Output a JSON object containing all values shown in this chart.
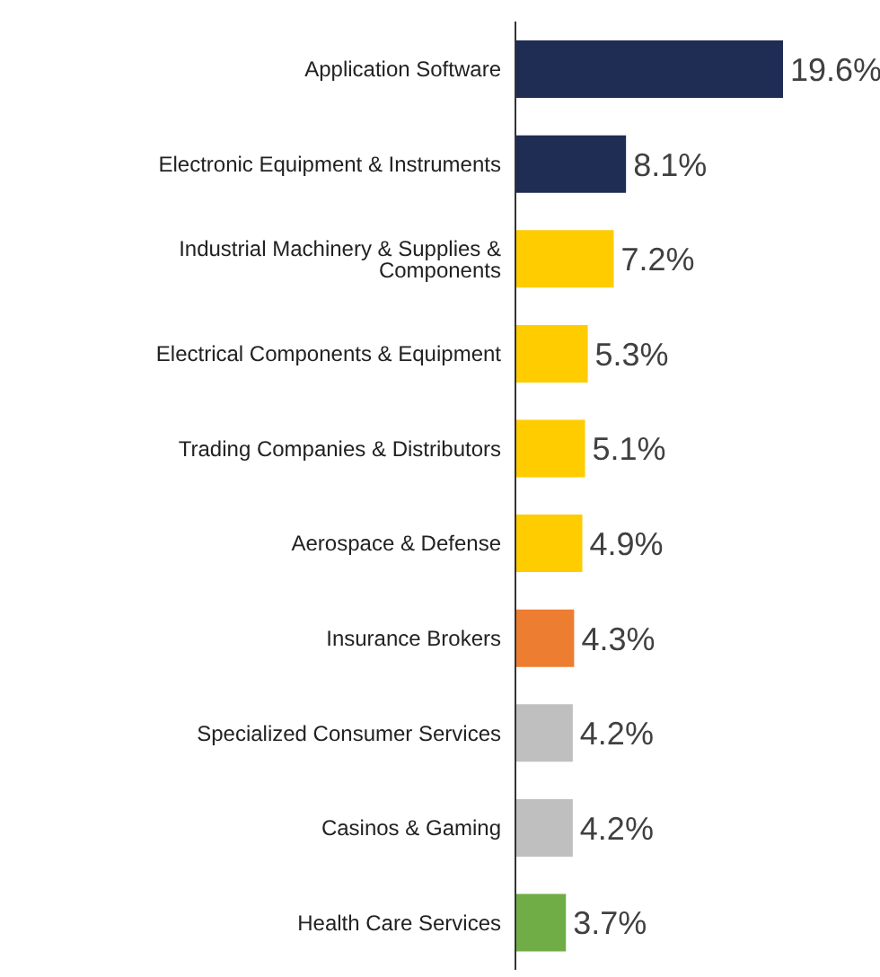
{
  "chart_data": {
    "type": "bar",
    "orientation": "horizontal",
    "categories": [
      "Application Software",
      "Electronic Equipment & Instruments",
      "Industrial Machinery & Supplies & Components",
      "Electrical Components & Equipment",
      "Trading Companies & Distributors",
      "Aerospace & Defense",
      "Insurance Brokers",
      "Specialized Consumer Services",
      "Casinos & Gaming",
      "Health Care Services"
    ],
    "values": [
      19.6,
      8.1,
      7.2,
      5.3,
      5.1,
      4.9,
      4.3,
      4.2,
      4.2,
      3.7
    ],
    "colors": [
      "#1f2d54",
      "#1f2d54",
      "#ffcc00",
      "#ffcc00",
      "#ffcc00",
      "#ffcc00",
      "#ed7d31",
      "#bfbfbf",
      "#bfbfbf",
      "#70ad47"
    ],
    "value_labels": [
      "19.6%",
      "8.1%",
      "7.2%",
      "5.3%",
      "5.1%",
      "4.9%",
      "4.3%",
      "4.2%",
      "4.2%",
      "3.7%"
    ],
    "grid": false,
    "legend": false
  }
}
